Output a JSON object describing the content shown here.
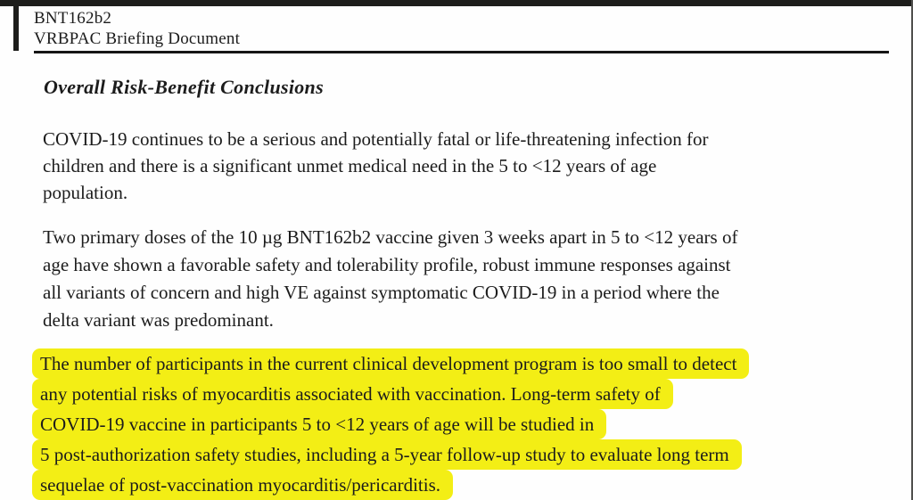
{
  "page": {
    "header": {
      "line1": "BNT162b2",
      "line2": "VRBPAC Briefing Document"
    },
    "heading": "Overall Risk-Benefit Conclusions",
    "paragraph1": {
      "lines": [
        "COVID-19 continues to be a serious and potentially fatal or life-threatening infection for",
        "children and there is a significant unmet medical need in the 5 to <12 years of age",
        "population."
      ]
    },
    "paragraph2": {
      "lines": [
        "Two primary doses of the 10 µg BNT162b2 vaccine given 3 weeks apart in 5 to <12 years of",
        "age have shown a favorable safety and tolerability profile, robust immune responses against",
        "all variants of concern and high VE against symptomatic COVID-19 in a period where the",
        "delta variant was predominant."
      ]
    },
    "highlighted_paragraph": {
      "highlight_color": "#f3ee15",
      "lines": [
        "The number of participants in the current clinical development program is too small to detect",
        "any potential risks of myocarditis associated with vaccination. Long-term safety of",
        "COVID-19 vaccine in participants 5 to <12 years of age will be studied in",
        "5 post-authorization safety studies, including a 5-year follow-up study to evaluate long term",
        "sequelae of post-vaccination myocarditis/pericarditis."
      ]
    },
    "colors": {
      "border": "#1d1d1b",
      "text": "#1c1c1c",
      "background": "#fefefe"
    }
  }
}
